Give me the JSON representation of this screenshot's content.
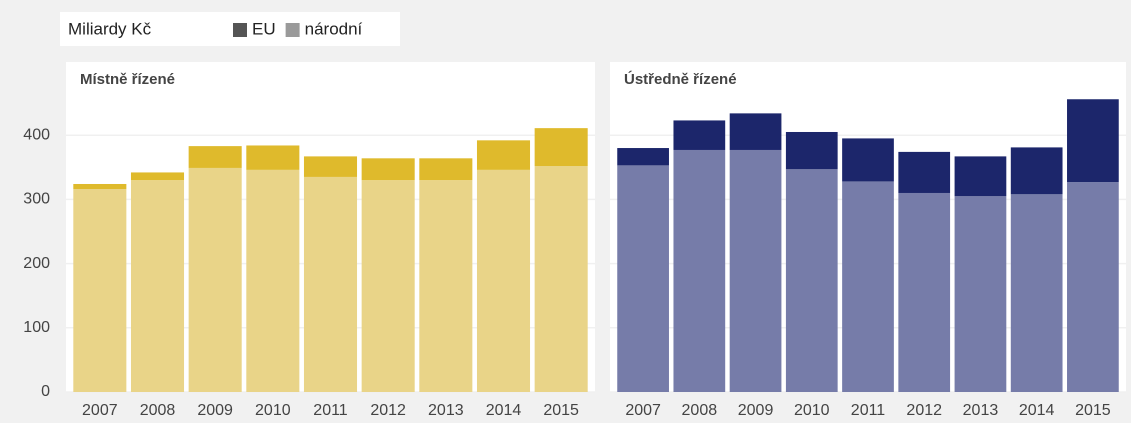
{
  "unit_label": "Miliardy Kč",
  "chart_data": [
    {
      "type": "bar",
      "stacked": true,
      "title": "Místně řízené",
      "categories": [
        "2007",
        "2008",
        "2009",
        "2010",
        "2011",
        "2012",
        "2013",
        "2014",
        "2015"
      ],
      "series": [
        {
          "name": "národní",
          "color": "#e9d488",
          "legend_color": "#9a9a9a",
          "values": [
            316,
            330,
            349,
            346,
            335,
            330,
            330,
            346,
            352
          ]
        },
        {
          "name": "EU",
          "color": "#dfba2c",
          "legend_color": "#555555",
          "values": [
            8,
            12,
            34,
            38,
            32,
            34,
            34,
            46,
            59
          ]
        }
      ],
      "ylim": [
        0,
        500
      ],
      "yticks": [
        0,
        100,
        200,
        300,
        400
      ],
      "grid": true
    },
    {
      "type": "bar",
      "stacked": true,
      "title": "Ústředně řízené",
      "categories": [
        "2007",
        "2008",
        "2009",
        "2010",
        "2011",
        "2012",
        "2013",
        "2014",
        "2015"
      ],
      "series": [
        {
          "name": "národní",
          "color": "#767ca9",
          "values": [
            353,
            377,
            377,
            347,
            328,
            310,
            305,
            308,
            327
          ]
        },
        {
          "name": "EU",
          "color": "#1c266b",
          "values": [
            27,
            46,
            57,
            58,
            67,
            64,
            62,
            73,
            129
          ]
        }
      ],
      "ylim": [
        0,
        500
      ],
      "yticks": [
        0,
        100,
        200,
        300,
        400
      ],
      "grid": true
    }
  ]
}
